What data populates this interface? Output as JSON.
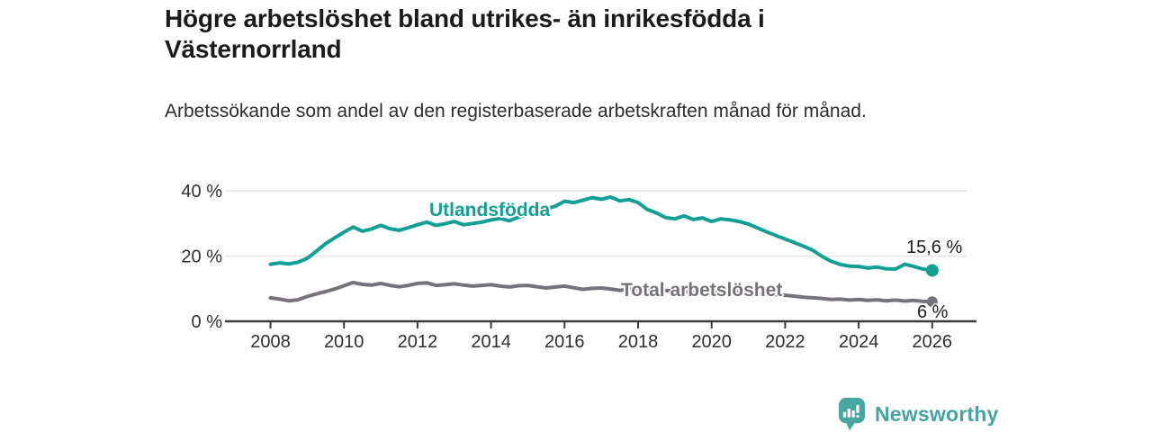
{
  "chart_data": {
    "type": "line",
    "title": "Högre arbetslöshet bland utrikes- än inrikesfödda i Västernorrland",
    "subtitle": "Arbetssökande som andel av den registerbaserade arbetskraften månad för månad.",
    "x": [
      2008.0,
      2008.25,
      2008.5,
      2008.75,
      2009.0,
      2009.25,
      2009.5,
      2009.75,
      2010.0,
      2010.25,
      2010.5,
      2010.75,
      2011.0,
      2011.25,
      2011.5,
      2011.75,
      2012.0,
      2012.25,
      2012.5,
      2012.75,
      2013.0,
      2013.25,
      2013.5,
      2013.75,
      2014.0,
      2014.25,
      2014.5,
      2014.75,
      2015.0,
      2015.25,
      2015.5,
      2015.75,
      2016.0,
      2016.25,
      2016.5,
      2016.75,
      2017.0,
      2017.25,
      2017.5,
      2017.75,
      2018.0,
      2018.25,
      2018.5,
      2018.75,
      2019.0,
      2019.25,
      2019.5,
      2019.75,
      2020.0,
      2020.25,
      2020.5,
      2020.75,
      2021.0,
      2021.25,
      2021.5,
      2021.75,
      2022.0,
      2022.25,
      2022.5,
      2022.75,
      2023.0,
      2023.25,
      2023.5,
      2023.75,
      2024.0,
      2024.25,
      2024.5,
      2024.75,
      2025.0,
      2025.25,
      2025.5,
      2025.75,
      2026.0
    ],
    "series": [
      {
        "name": "Utlandsfödda",
        "color": "#13a094",
        "end_label": "15,6 %",
        "end_value": 15.6,
        "values": [
          17.5,
          17.9,
          17.6,
          18.1,
          19.3,
          21.5,
          23.8,
          25.6,
          27.3,
          28.9,
          27.6,
          28.3,
          29.4,
          28.4,
          27.9,
          28.7,
          29.6,
          30.4,
          29.4,
          29.9,
          30.6,
          29.6,
          30.0,
          30.4,
          31.1,
          31.5,
          30.8,
          31.9,
          32.8,
          33.9,
          34.4,
          35.3,
          36.8,
          36.4,
          37.1,
          37.9,
          37.4,
          38.1,
          36.9,
          37.3,
          36.4,
          34.3,
          33.2,
          31.8,
          31.4,
          32.3,
          31.2,
          31.7,
          30.6,
          31.4,
          31.1,
          30.6,
          29.8,
          28.6,
          27.4,
          26.3,
          25.2,
          24.1,
          23.0,
          21.8,
          19.9,
          18.4,
          17.4,
          16.9,
          16.8,
          16.3,
          16.6,
          16.1,
          16.0,
          17.5,
          16.8,
          16.0,
          15.6
        ]
      },
      {
        "name": "Total arbetslöshet",
        "color": "#757379",
        "end_label": "6 %",
        "end_value": 6.0,
        "values": [
          7.2,
          6.8,
          6.3,
          6.6,
          7.6,
          8.4,
          9.1,
          9.9,
          10.9,
          11.9,
          11.3,
          11.1,
          11.6,
          11.0,
          10.6,
          11.0,
          11.6,
          11.8,
          11.0,
          11.2,
          11.5,
          11.1,
          10.8,
          11.0,
          11.2,
          10.8,
          10.5,
          10.9,
          11.0,
          10.6,
          10.2,
          10.5,
          10.8,
          10.3,
          9.8,
          10.1,
          10.2,
          9.9,
          9.5,
          9.8,
          9.9,
          9.5,
          9.1,
          9.4,
          9.4,
          9.1,
          8.9,
          9.2,
          9.0,
          9.6,
          9.4,
          9.2,
          9.0,
          8.7,
          8.4,
          8.2,
          8.0,
          7.7,
          7.4,
          7.2,
          7.0,
          6.7,
          6.8,
          6.5,
          6.7,
          6.4,
          6.6,
          6.3,
          6.5,
          6.2,
          6.4,
          6.1,
          6.0
        ]
      }
    ],
    "yticks": [
      {
        "value": 0,
        "label": "0 %"
      },
      {
        "value": 20,
        "label": "20 %"
      },
      {
        "value": 40,
        "label": "40 %"
      }
    ],
    "xticks": [
      {
        "value": 2008,
        "label": "2008"
      },
      {
        "value": 2010,
        "label": "2010"
      },
      {
        "value": 2012,
        "label": "2012"
      },
      {
        "value": 2014,
        "label": "2014"
      },
      {
        "value": 2016,
        "label": "2016"
      },
      {
        "value": 2018,
        "label": "2018"
      },
      {
        "value": 2020,
        "label": "2020"
      },
      {
        "value": 2022,
        "label": "2022"
      },
      {
        "value": 2024,
        "label": "2024"
      },
      {
        "value": 2026,
        "label": "2026"
      }
    ],
    "ylim": [
      0,
      40
    ],
    "grid": "horizontal",
    "legend_position": "direct-labels-on-lines"
  },
  "footer": {
    "brand": "Newsworthy",
    "brand_color": "#45a4a1",
    "logo_icon": "bar-chart-bubble-icon"
  }
}
